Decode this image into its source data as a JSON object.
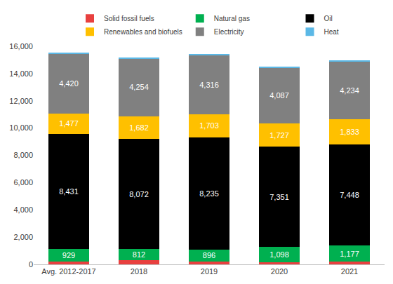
{
  "chart_data": {
    "type": "bar",
    "stacked": true,
    "grid": false,
    "legend": "top",
    "categories": [
      "Avg. 2012-2017",
      "2018",
      "2019",
      "2020",
      "2021"
    ],
    "series": [
      {
        "name": "Solid fossil fuels",
        "color": "#e8403f",
        "data_labels": false,
        "values": [
          220,
          300,
          200,
          170,
          190
        ]
      },
      {
        "name": "Natural gas",
        "color": "#00b050",
        "data_labels": true,
        "values": [
          929,
          812,
          896,
          1098,
          1177
        ]
      },
      {
        "name": "Oil",
        "color": "#000000",
        "data_labels": true,
        "values": [
          8431,
          8072,
          8235,
          7351,
          7448
        ]
      },
      {
        "name": "Renewables and biofuels",
        "color": "#ffc000",
        "data_labels": true,
        "values": [
          1477,
          1682,
          1703,
          1727,
          1833
        ]
      },
      {
        "name": "Electricity",
        "color": "#808080",
        "data_labels": true,
        "values": [
          4420,
          4254,
          4316,
          4087,
          4234
        ]
      },
      {
        "name": "Heat",
        "color": "#5bb8e6",
        "data_labels": false,
        "values": [
          50,
          40,
          50,
          40,
          40
        ]
      }
    ],
    "ylim": [
      0,
      16000
    ],
    "yticks": [
      0,
      {
        "value": 2000,
        "label": "2,000"
      },
      {
        "value": 4000,
        "label": "4,000"
      },
      {
        "value": 6000,
        "label": "6,000"
      },
      {
        "value": 8000,
        "label": "8,000"
      },
      {
        "value": 10000,
        "label": "10,000"
      },
      {
        "value": 12000,
        "label": "12,000"
      },
      {
        "value": 14000,
        "label": "14,000"
      },
      {
        "value": 16000,
        "label": "16,000"
      }
    ]
  }
}
